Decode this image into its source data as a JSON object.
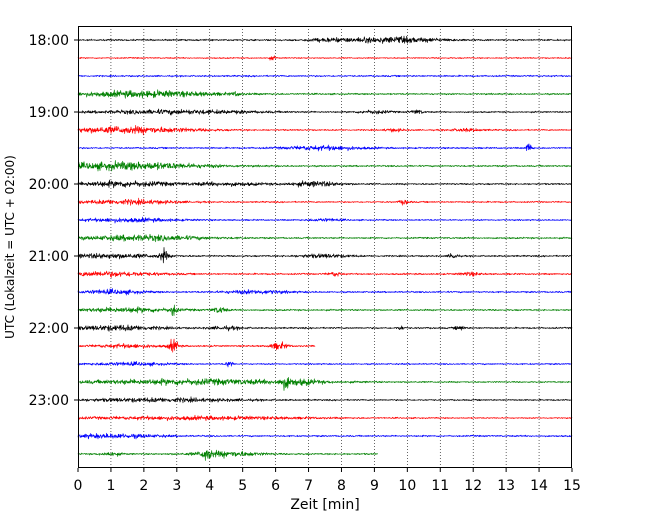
{
  "chart_data": {
    "type": "line",
    "title": "",
    "xlabel": "Zeit  [min]",
    "ylabel": "UTC (Lokalzeit = UTC + 02:00)",
    "xlim": [
      0,
      15
    ],
    "x_ticks": [
      "0",
      "1",
      "2",
      "3",
      "4",
      "5",
      "6",
      "7",
      "8",
      "9",
      "10",
      "11",
      "12",
      "13",
      "14",
      "15"
    ],
    "y_ticks": [
      "18:00",
      "19:00",
      "20:00",
      "21:00",
      "22:00",
      "23:00"
    ],
    "grid": "vertical dotted",
    "series_colors": [
      "#000000",
      "#ff0000",
      "#0000ff",
      "#008000"
    ],
    "traces": [
      {
        "time": "18:00",
        "color": "#000000",
        "end": 15,
        "base": 0.45,
        "bursts": [
          [
            9.5,
            1.6,
            1.6
          ],
          [
            7.5,
            0.6,
            0.6
          ]
        ]
      },
      {
        "time": "18:15",
        "color": "#ff0000",
        "end": 15,
        "base": 0.35,
        "bursts": [
          [
            5.9,
            0.1,
            1.0
          ]
        ]
      },
      {
        "time": "18:30",
        "color": "#0000ff",
        "end": 15,
        "base": 0.45,
        "bursts": []
      },
      {
        "time": "18:45",
        "color": "#008000",
        "end": 15,
        "base": 0.45,
        "bursts": [
          [
            2.0,
            2.2,
            1.8
          ],
          [
            4.8,
            0.1,
            1.0
          ]
        ]
      },
      {
        "time": "19:00",
        "color": "#000000",
        "end": 15,
        "base": 0.4,
        "bursts": [
          [
            3.0,
            2.5,
            1.2
          ],
          [
            10.3,
            0.2,
            1.2
          ],
          [
            9.0,
            0.5,
            0.9
          ]
        ]
      },
      {
        "time": "19:15",
        "color": "#ff0000",
        "end": 15,
        "base": 0.4,
        "bursts": [
          [
            1.5,
            2.0,
            2.0
          ],
          [
            9.6,
            0.3,
            0.8
          ],
          [
            11.8,
            0.5,
            0.8
          ]
        ]
      },
      {
        "time": "19:30",
        "color": "#0000ff",
        "end": 15,
        "base": 0.45,
        "bursts": [
          [
            7.5,
            1.2,
            1.2
          ],
          [
            13.7,
            0.08,
            4.0
          ]
        ]
      },
      {
        "time": "19:45",
        "color": "#008000",
        "end": 15,
        "base": 0.45,
        "bursts": [
          [
            1.5,
            2.3,
            2.2
          ]
        ]
      },
      {
        "time": "20:00",
        "color": "#000000",
        "end": 15,
        "base": 0.45,
        "bursts": [
          [
            1.3,
            1.5,
            1.6
          ],
          [
            7.2,
            0.8,
            1.4
          ],
          [
            4.5,
            1.2,
            0.9
          ]
        ]
      },
      {
        "time": "20:15",
        "color": "#ff0000",
        "end": 15,
        "base": 0.4,
        "bursts": [
          [
            1.5,
            1.5,
            1.3
          ],
          [
            9.9,
            0.15,
            1.4
          ]
        ]
      },
      {
        "time": "20:30",
        "color": "#0000ff",
        "end": 15,
        "base": 0.4,
        "bursts": [
          [
            1.5,
            1.5,
            1.1
          ],
          [
            7.5,
            0.5,
            0.8
          ]
        ]
      },
      {
        "time": "20:45",
        "color": "#008000",
        "end": 15,
        "base": 0.45,
        "bursts": [
          [
            2.0,
            1.8,
            1.6
          ]
        ]
      },
      {
        "time": "21:00",
        "color": "#000000",
        "end": 15,
        "base": 0.45,
        "bursts": [
          [
            2.6,
            0.12,
            3.5
          ],
          [
            1.0,
            1.5,
            1.3
          ],
          [
            11.4,
            0.12,
            2.0
          ],
          [
            7.5,
            0.8,
            1.0
          ]
        ]
      },
      {
        "time": "21:15",
        "color": "#ff0000",
        "end": 15,
        "base": 0.45,
        "bursts": [
          [
            0.9,
            1.5,
            1.4
          ],
          [
            7.8,
            0.2,
            1.2
          ],
          [
            11.9,
            0.3,
            1.0
          ]
        ]
      },
      {
        "time": "21:30",
        "color": "#0000ff",
        "end": 15,
        "base": 0.45,
        "bursts": [
          [
            1.0,
            1.0,
            1.2
          ],
          [
            5.4,
            1.0,
            1.0
          ]
        ]
      },
      {
        "time": "21:45",
        "color": "#008000",
        "end": 15,
        "base": 0.45,
        "bursts": [
          [
            2.9,
            0.1,
            3.0
          ],
          [
            4.3,
            0.2,
            1.8
          ],
          [
            1.5,
            1.5,
            1.3
          ]
        ]
      },
      {
        "time": "22:00",
        "color": "#000000",
        "end": 15,
        "base": 0.45,
        "bursts": [
          [
            1.2,
            1.3,
            1.5
          ],
          [
            9.8,
            0.1,
            1.2
          ],
          [
            11.6,
            0.15,
            1.3
          ],
          [
            4.5,
            0.5,
            0.9
          ]
        ]
      },
      {
        "time": "22:15",
        "color": "#ff0000",
        "end": 7.2,
        "base": 0.45,
        "bursts": [
          [
            2.9,
            0.15,
            3.5
          ],
          [
            6.1,
            0.25,
            2.0
          ],
          [
            1.5,
            1.0,
            1.0
          ]
        ]
      },
      {
        "time": "22:30",
        "color": "#0000ff",
        "end": 15,
        "base": 0.4,
        "bursts": [
          [
            4.6,
            0.1,
            2.0
          ],
          [
            1.5,
            1.2,
            0.9
          ]
        ]
      },
      {
        "time": "22:45",
        "color": "#008000",
        "end": 15,
        "base": 0.4,
        "bursts": [
          [
            6.3,
            0.15,
            3.0
          ],
          [
            3.5,
            3.5,
            1.6
          ],
          [
            6.8,
            0.5,
            1.2
          ]
        ]
      },
      {
        "time": "23:00",
        "color": "#000000",
        "end": 15,
        "base": 0.4,
        "bursts": [
          [
            2.5,
            2.5,
            1.1
          ]
        ]
      },
      {
        "time": "23:15",
        "color": "#ff0000",
        "end": 15,
        "base": 0.35,
        "bursts": [
          [
            3.5,
            3.5,
            1.0
          ]
        ]
      },
      {
        "time": "23:30",
        "color": "#0000ff",
        "end": 15,
        "base": 0.45,
        "bursts": [
          [
            1.0,
            1.5,
            1.2
          ]
        ]
      },
      {
        "time": "23:45",
        "color": "#008000",
        "end": 9.1,
        "base": 0.45,
        "bursts": [
          [
            3.9,
            0.15,
            3.0
          ],
          [
            4.5,
            1.0,
            1.6
          ],
          [
            1.0,
            0.3,
            1.0
          ]
        ]
      }
    ]
  }
}
